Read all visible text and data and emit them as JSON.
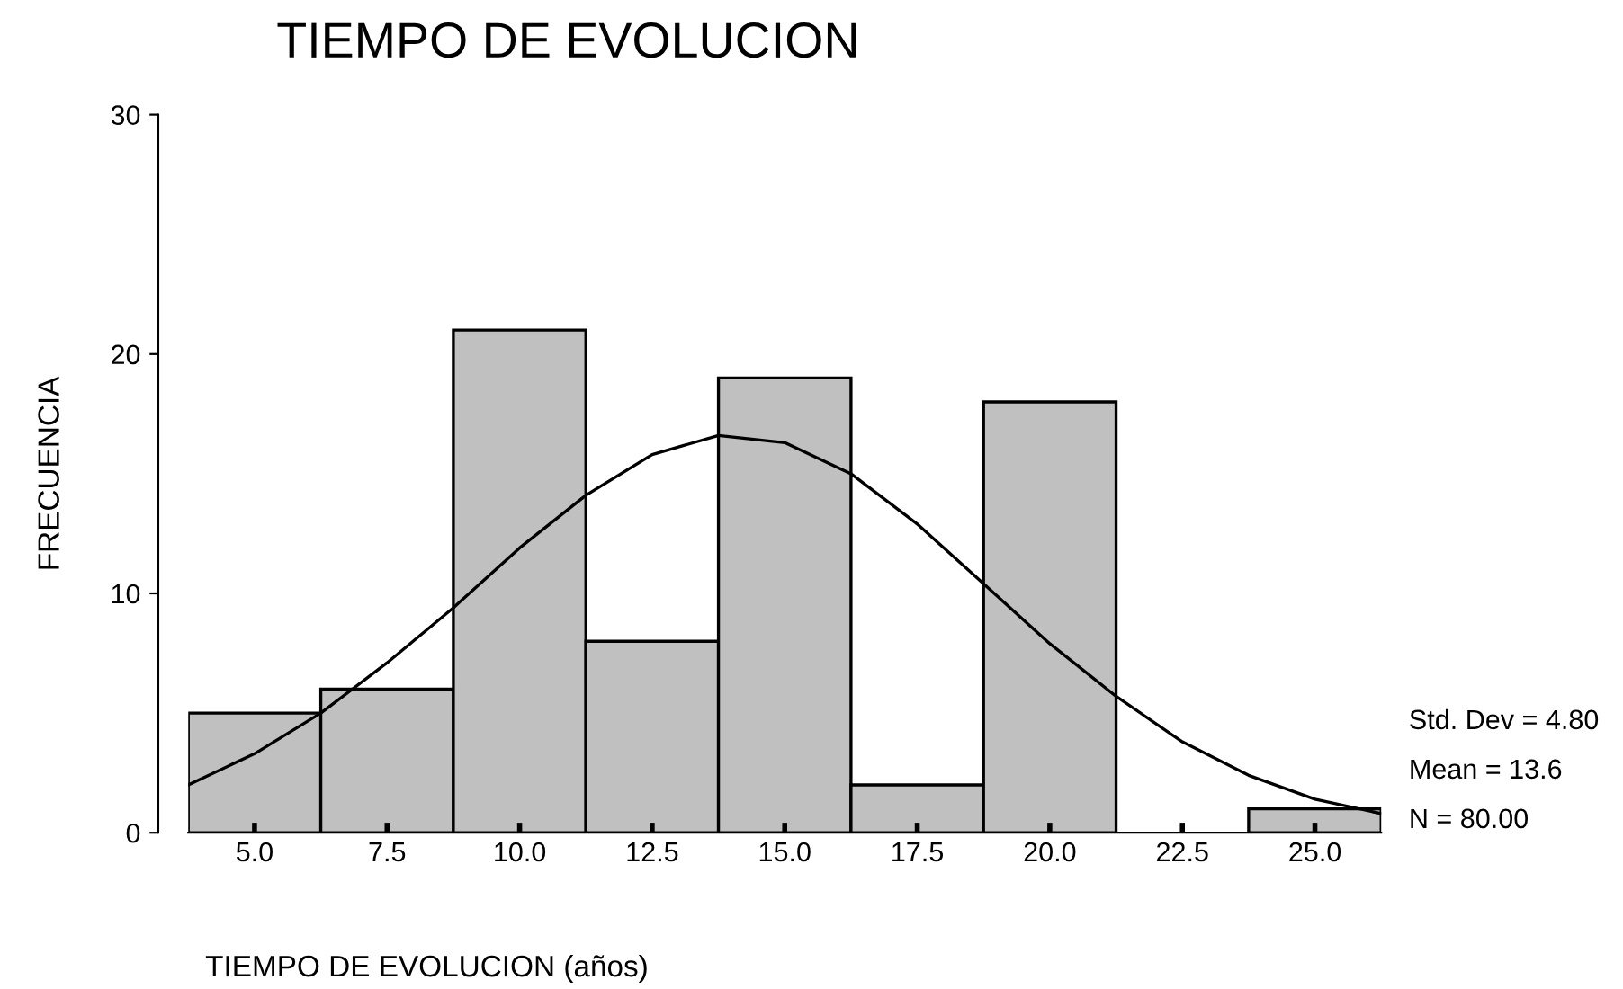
{
  "chart_data": {
    "type": "histogram",
    "title": "TIEMPO DE EVOLUCION",
    "xlabel": "TIEMPO DE EVOLUCION (años)",
    "ylabel": "FRECUENCIA",
    "bins": [
      3.75,
      6.25,
      8.75,
      11.25,
      13.75,
      16.25,
      18.75,
      21.25,
      23.75,
      26.25
    ],
    "values": [
      5,
      6,
      21,
      8,
      19,
      2,
      18,
      0,
      1
    ],
    "color": "#c0c0c0",
    "series": [
      {
        "type": "line",
        "color": "#000000",
        "x": [
          3.75,
          5,
          6.25,
          7.5,
          8.75,
          10,
          11.25,
          12.5,
          13.75,
          15,
          16.25,
          17.5,
          18.75,
          20,
          21.25,
          22.5,
          23.75,
          25,
          26.25
        ],
        "values": [
          2.0,
          3.3,
          5.0,
          7.1,
          9.4,
          11.9,
          14.1,
          15.8,
          16.6,
          16.3,
          15.0,
          12.9,
          10.4,
          7.9,
          5.7,
          3.8,
          2.4,
          1.4,
          0.8
        ]
      }
    ],
    "xlim": [
      3.75,
      26.25
    ],
    "ylim": [
      0,
      30
    ],
    "xticks": [
      {
        "value": 5,
        "label": "5.0"
      },
      {
        "value": 7.5,
        "label": "7.5"
      },
      {
        "value": 10,
        "label": "10.0"
      },
      {
        "value": 12.5,
        "label": "12.5"
      },
      {
        "value": 15,
        "label": "15.0"
      },
      {
        "value": 17.5,
        "label": "17.5"
      },
      {
        "value": 20,
        "label": "20.0"
      },
      {
        "value": 22.5,
        "label": "22.5"
      },
      {
        "value": 25,
        "label": "25.0"
      }
    ],
    "yticks": [
      0,
      10,
      20,
      30
    ],
    "annotations": [
      "Std. Dev = 4.80",
      "Mean = 13.6",
      "N = 80.00"
    ]
  }
}
